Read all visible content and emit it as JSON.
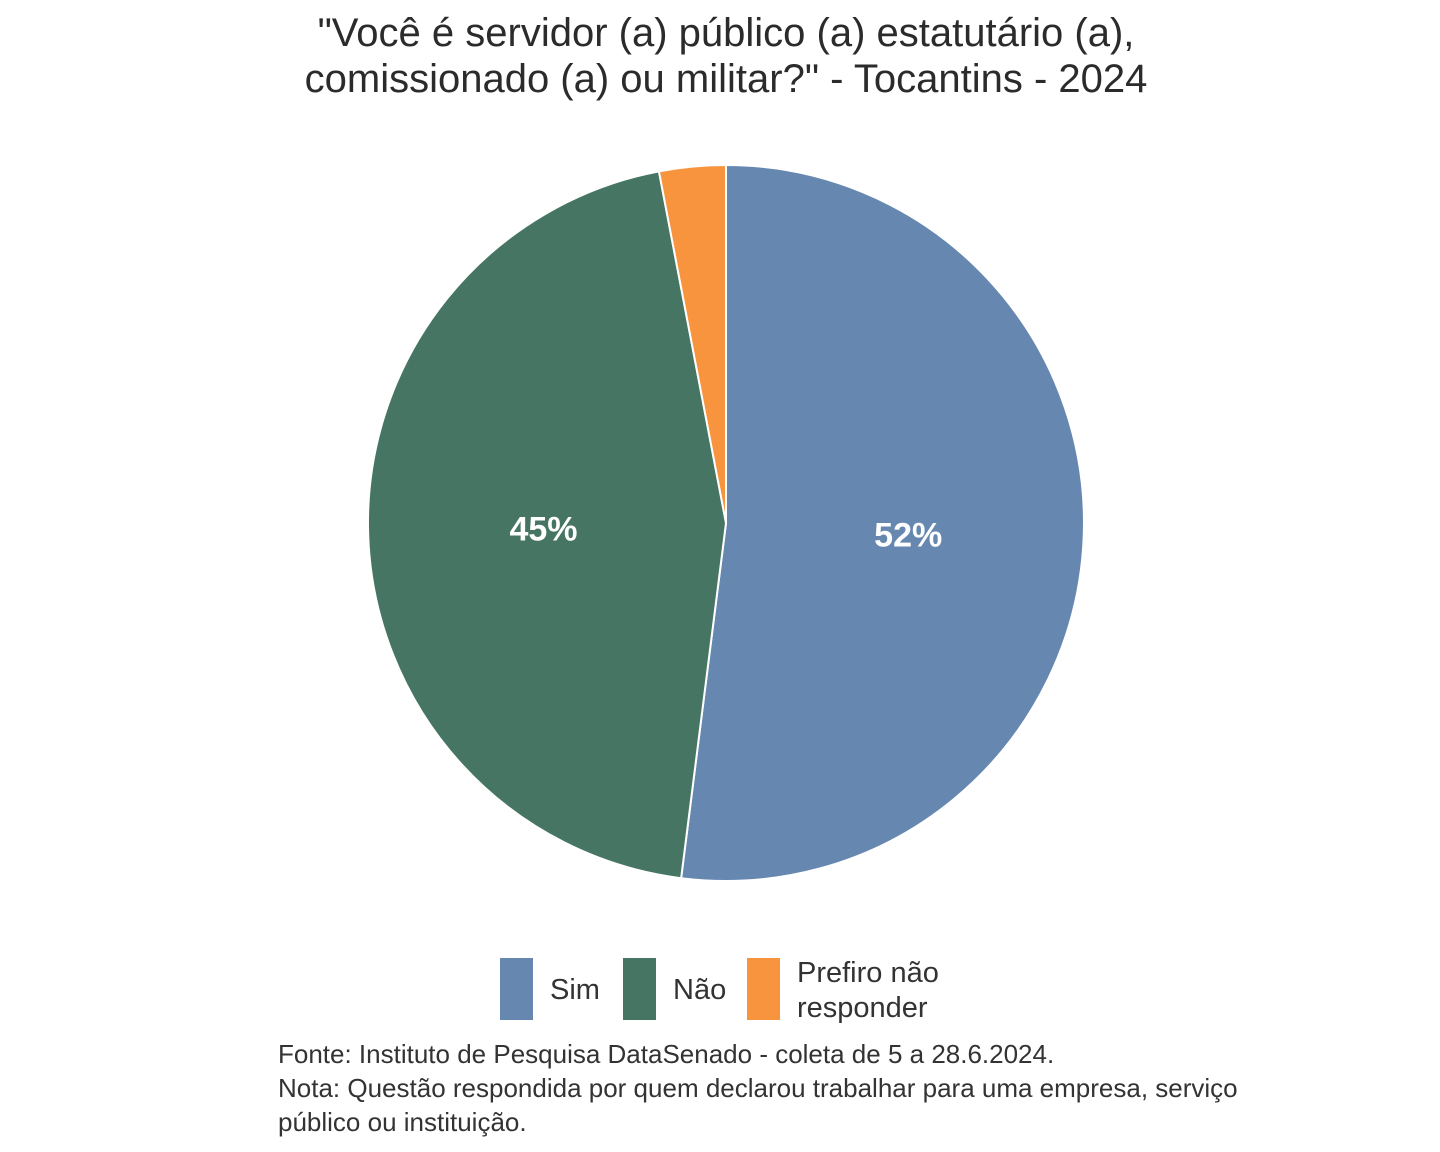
{
  "chart_data": {
    "type": "pie",
    "title_lines": [
      "\"Você é servidor (a) público (a) estatutário (a),",
      "comissionado (a) ou militar?\" - Tocantins - 2024"
    ],
    "categories": [
      "Sim",
      "Não",
      "Prefiro não responder"
    ],
    "values": [
      52,
      45,
      3
    ],
    "slice_labels": [
      "52%",
      "45%",
      ""
    ],
    "colors": [
      "#6688b0",
      "#467564",
      "#f8943e"
    ],
    "legend": {
      "position": "bottom",
      "entries": [
        "Sim",
        "Não",
        "Prefiro não\nresponder"
      ]
    },
    "caption_lines": [
      "Fonte: Instituto de Pesquisa DataSenado - coleta de 5 a 28.6.2024.",
      "Nota: Questão respondida por quem declarou trabalhar para uma empresa, serviço",
      "público ou instituição."
    ]
  }
}
